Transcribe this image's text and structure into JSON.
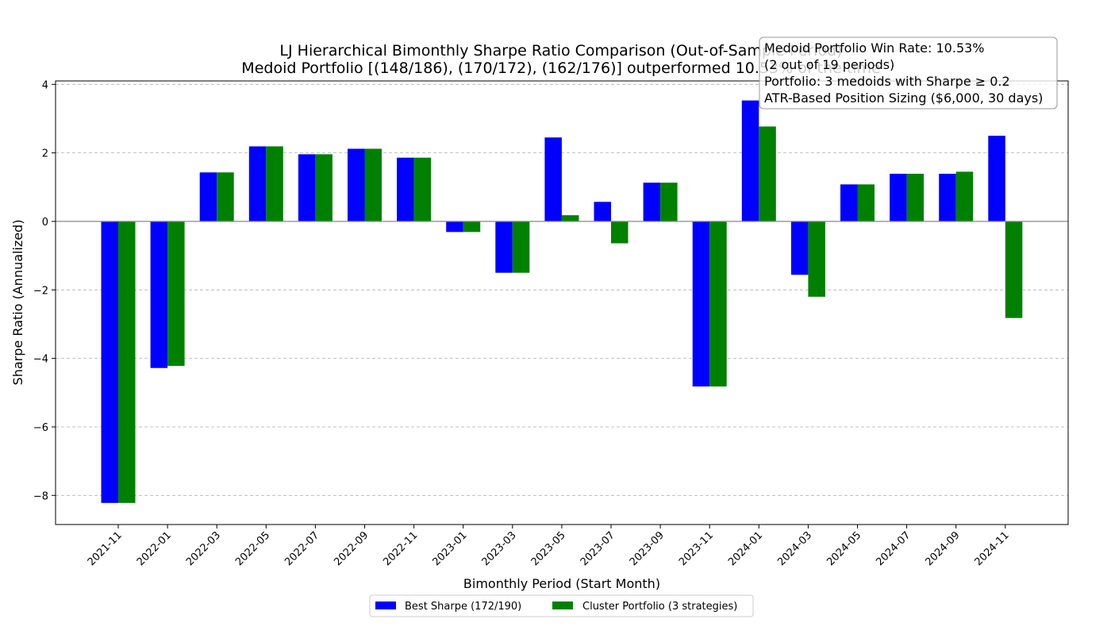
{
  "chart_data": {
    "type": "bar",
    "title_lines": [
      "LJ Hierarchical Bimonthly Sharpe Ratio Comparison (Out-of-Sample Period)",
      "Medoid Portfolio [(148/186), (170/172), (162/176)] outperformed 10.53% of the time"
    ],
    "xlabel": "Bimonthly Period (Start Month)",
    "ylabel": "Sharpe Ratio (Annualized)",
    "ylim": [
      -8.85,
      4.1
    ],
    "yticks": [
      4,
      2,
      0,
      -2,
      -4,
      -6,
      -8
    ],
    "ytick_labels": [
      "4",
      "2",
      "0",
      "−2",
      "−4",
      "−6",
      "−8"
    ],
    "grid": true,
    "legend_position": "bottom-center",
    "categories": [
      "2021-11",
      "2022-01",
      "2022-03",
      "2022-05",
      "2022-07",
      "2022-09",
      "2022-11",
      "2023-01",
      "2023-03",
      "2023-05",
      "2023-07",
      "2023-09",
      "2023-11",
      "2024-01",
      "2024-03",
      "2024-05",
      "2024-07",
      "2024-09",
      "2024-11"
    ],
    "series": [
      {
        "name": "Best Sharpe (172/190)",
        "color": "#0000ff",
        "values": [
          -8.22,
          -4.28,
          1.43,
          2.19,
          1.96,
          2.12,
          1.86,
          -0.31,
          -1.5,
          2.45,
          0.57,
          1.13,
          -4.82,
          3.53,
          -1.56,
          1.08,
          1.39,
          1.39,
          2.5
        ]
      },
      {
        "name": "Cluster Portfolio (3 strategies)",
        "color": "#008000",
        "values": [
          -8.22,
          -4.22,
          1.43,
          2.19,
          1.96,
          2.12,
          1.86,
          -0.31,
          -1.5,
          0.18,
          -0.64,
          1.13,
          -4.82,
          2.77,
          -2.2,
          1.08,
          1.39,
          1.45,
          -2.82
        ]
      }
    ],
    "annotation_lines": [
      "Medoid Portfolio Win Rate: 10.53%",
      "(2 out of 19 periods)",
      "Portfolio: 3 medoids with Sharpe ≥ 0.2",
      "ATR-Based Position Sizing ($6,000, 30 days)"
    ]
  }
}
